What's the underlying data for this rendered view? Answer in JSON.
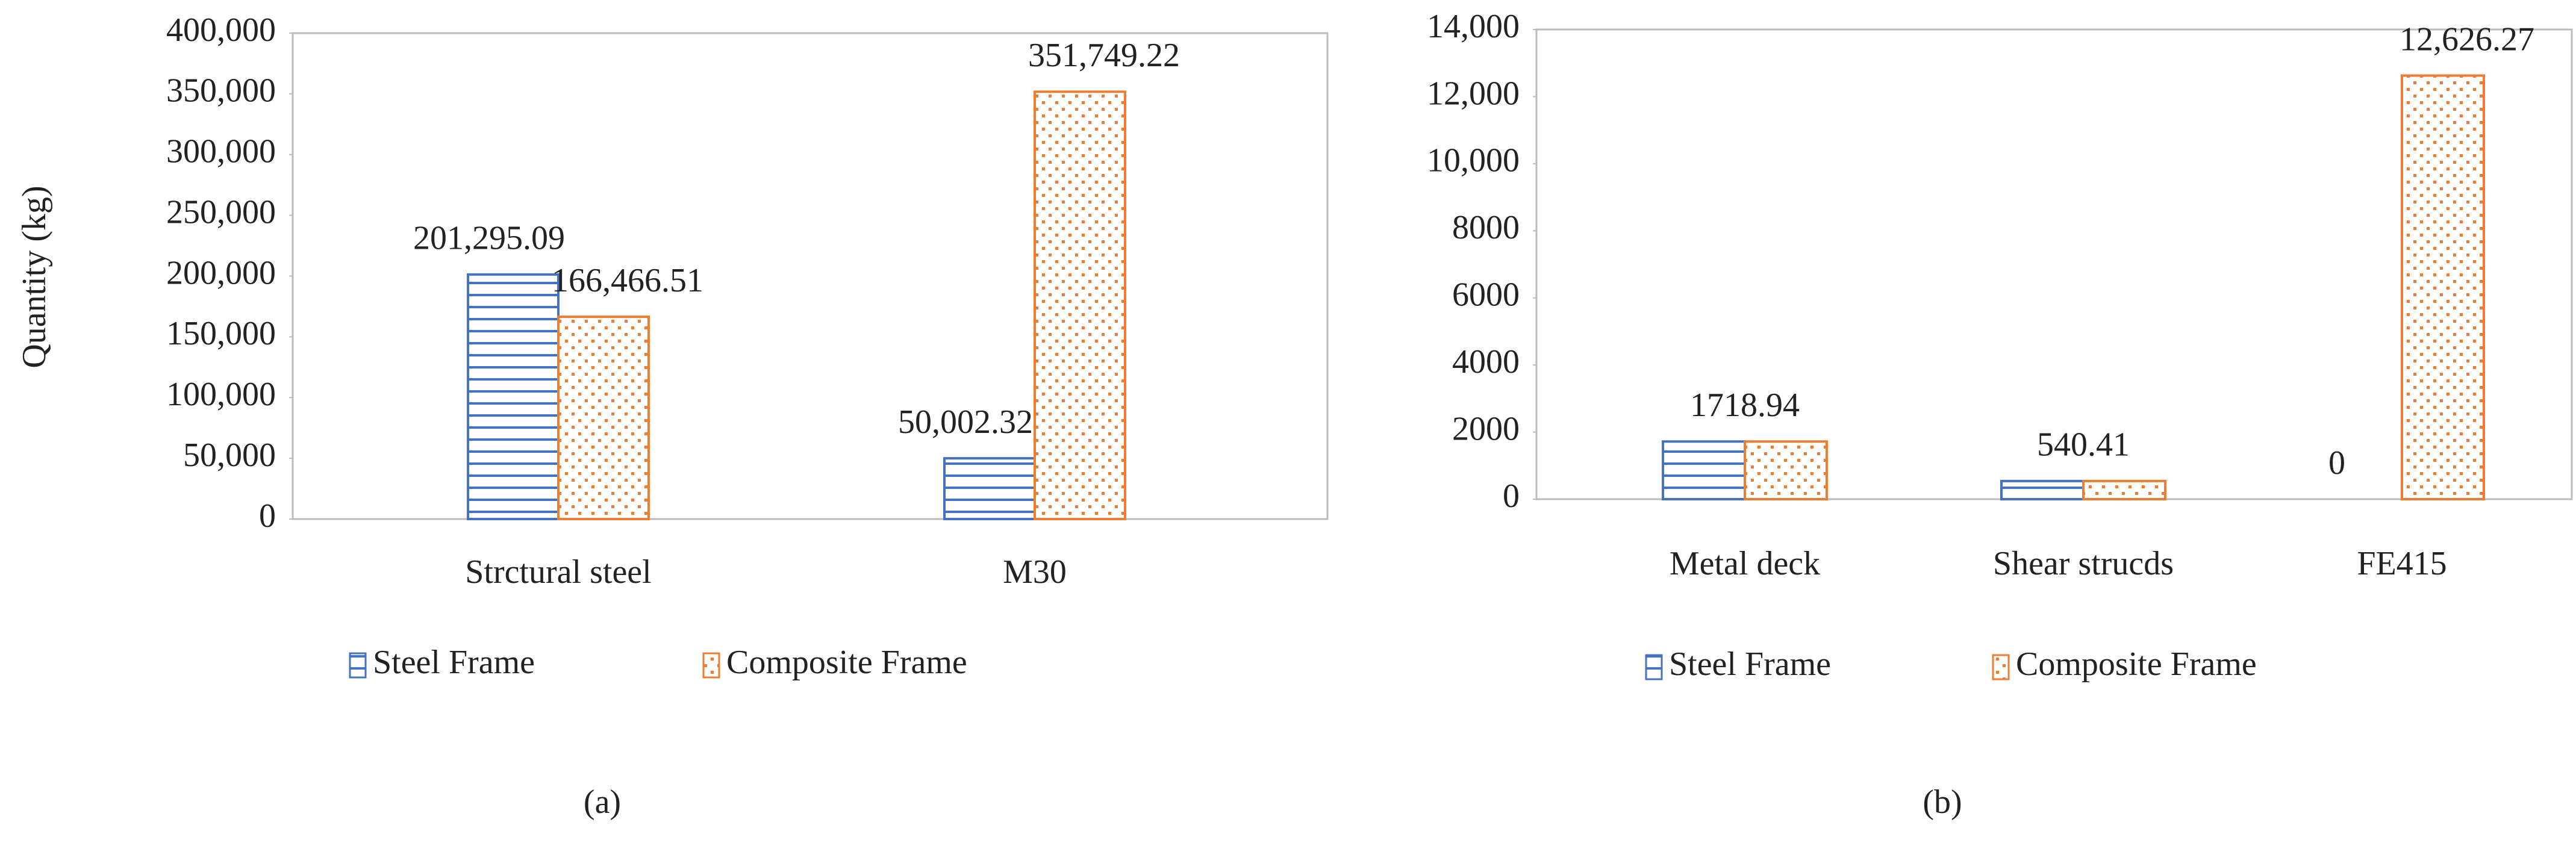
{
  "chart_data": [
    {
      "type": "bar",
      "ylabel": "Quantity (kg)",
      "caption": "(a)",
      "categories": [
        "Strctural steel",
        "M30"
      ],
      "series": [
        {
          "name": "Steel Frame",
          "color": "#4472c4",
          "values": [
            201295.09,
            50002.32
          ],
          "value_labels": [
            "201,295.09",
            "50,002.32"
          ]
        },
        {
          "name": "Composite Frame",
          "color": "#ed7d31",
          "values": [
            166466.51,
            351749.22
          ],
          "value_labels": [
            "166,466.51",
            "351,749.22"
          ]
        }
      ],
      "ylim": [
        0,
        400000
      ],
      "yticks": [
        0,
        {
          "value": 50000,
          "label": "50,000"
        },
        {
          "value": 100000,
          "label": "100,000"
        },
        {
          "value": 150000,
          "label": "150,000"
        },
        {
          "value": 200000,
          "label": "200,000"
        },
        {
          "value": 250000,
          "label": "250,000"
        },
        {
          "value": 300000,
          "label": "300,000"
        },
        {
          "value": 350000,
          "label": "350,000"
        },
        {
          "value": 400000,
          "label": "400,000"
        }
      ],
      "legend": "bottom"
    },
    {
      "type": "bar",
      "caption": "(b)",
      "categories": [
        "Metal deck",
        "Shear strucds",
        "FE415"
      ],
      "series": [
        {
          "name": "Steel Frame",
          "color": "#4472c4",
          "values": [
            1718.94,
            540.41,
            0
          ],
          "value_labels": [
            "1718.94",
            "540.41",
            "0"
          ]
        },
        {
          "name": "Composite Frame",
          "color": "#ed7d31",
          "values": [
            1718.94,
            540.41,
            12626.27
          ],
          "value_labels": [
            null,
            null,
            "12,626.27"
          ]
        }
      ],
      "ylim": [
        0,
        14000
      ],
      "yticks": [
        0,
        2000,
        4000,
        6000,
        8000,
        {
          "value": 10000,
          "label": "10,000"
        },
        {
          "value": 12000,
          "label": "12,000"
        },
        {
          "value": 14000,
          "label": "14,000"
        }
      ],
      "legend": "bottom"
    }
  ]
}
